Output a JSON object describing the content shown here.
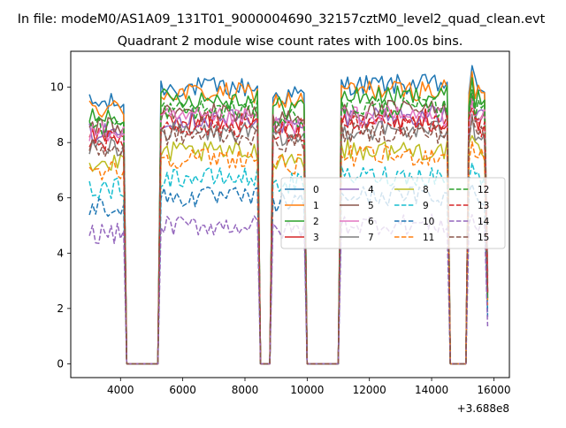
{
  "figure": {
    "suptitle": "In file: modeM0/AS1A09_131T01_9000004690_32157cztM0_level2_quad_clean.evt",
    "title": "Quadrant 2 module wise count rates with 100.0s bins.",
    "x_offset_label": "+3.688e8"
  },
  "colors": [
    "#1f77b4",
    "#ff7f0e",
    "#2ca02c",
    "#d62728",
    "#9467bd",
    "#8c564b",
    "#e377c2",
    "#7f7f7f",
    "#bcbd22",
    "#17becf",
    "#1f77b4",
    "#ff7f0e",
    "#2ca02c",
    "#d62728",
    "#9467bd",
    "#8c564b"
  ],
  "chart_data": {
    "type": "line",
    "title": "Quadrant 2 module wise count rates with 100.0s bins.",
    "xlabel": "",
    "ylabel": "",
    "x_offset": 368800000,
    "xlim": [
      2400,
      16500
    ],
    "ylim": [
      -0.5,
      11.3
    ],
    "xticks": [
      4000,
      6000,
      8000,
      10000,
      12000,
      14000,
      16000
    ],
    "xtick_labels": [
      "4000",
      "6000",
      "8000",
      "10000",
      "12000",
      "14000",
      "16000"
    ],
    "yticks": [
      0,
      2,
      4,
      6,
      8,
      10
    ],
    "ytick_labels": [
      "0",
      "2",
      "4",
      "6",
      "8",
      "10"
    ],
    "grid": false,
    "legend": {
      "placement": "center-right",
      "columns": 4
    },
    "segments": [
      {
        "start": 3000,
        "end": 4100
      },
      {
        "start": 5300,
        "end": 8400
      },
      {
        "start": 8900,
        "end": 9900
      },
      {
        "start": 11100,
        "end": 14500
      },
      {
        "start": 15200,
        "end": 15800
      }
    ],
    "series": [
      {
        "name": "0",
        "style": "solid",
        "level": 9.8
      },
      {
        "name": "1",
        "style": "solid",
        "level": 9.6
      },
      {
        "name": "2",
        "style": "solid",
        "level": 9.4
      },
      {
        "name": "3",
        "style": "solid",
        "level": 8.6
      },
      {
        "name": "4",
        "style": "solid",
        "level": 8.7
      },
      {
        "name": "5",
        "style": "solid",
        "level": 8.9
      },
      {
        "name": "6",
        "style": "solid",
        "level": 8.7
      },
      {
        "name": "7",
        "style": "solid",
        "level": 8.2
      },
      {
        "name": "8",
        "style": "solid",
        "level": 7.5
      },
      {
        "name": "9",
        "style": "dashed",
        "level": 6.6
      },
      {
        "name": "10",
        "style": "dashed",
        "level": 5.9
      },
      {
        "name": "11",
        "style": "dashed",
        "level": 7.3
      },
      {
        "name": "12",
        "style": "dashed",
        "level": 9.0
      },
      {
        "name": "13",
        "style": "dashed",
        "level": 8.4
      },
      {
        "name": "14",
        "style": "dashed",
        "level": 4.9
      },
      {
        "name": "15",
        "style": "dashed",
        "level": 8.1
      }
    ]
  }
}
